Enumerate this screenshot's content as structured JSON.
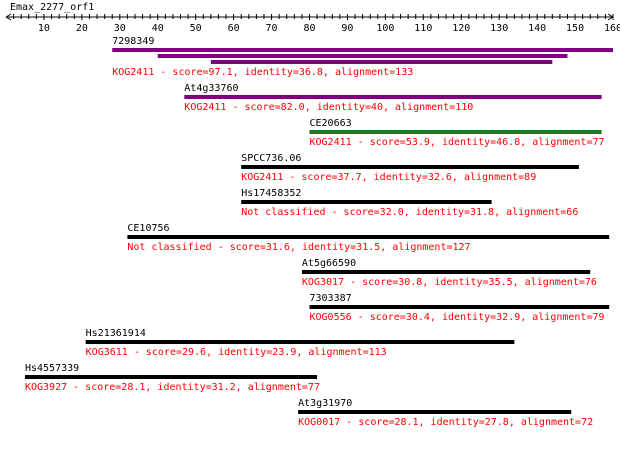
{
  "query": {
    "name": "Emax_2277_orf1",
    "ticks": [
      10,
      20,
      30,
      40,
      50,
      60,
      70,
      80,
      90,
      100,
      110,
      120,
      130,
      140,
      150,
      160
    ]
  },
  "colors": {
    "text": "#000000",
    "caption": "#ff0000",
    "purple": "#800080",
    "green": "#1f7a1f",
    "black": "#000000"
  },
  "hits": [
    {
      "id": "7298349",
      "caption": "KOG2411 - score=97.1, identity=36.8, alignment=133",
      "segments": [
        {
          "start": 28,
          "end": 160,
          "color": "purple"
        },
        {
          "start": 40,
          "end": 148,
          "color": "purple"
        },
        {
          "start": 54,
          "end": 144,
          "color": "purple"
        }
      ]
    },
    {
      "id": "At4g33760",
      "caption": "KOG2411 - score=82.0, identity=40, alignment=110",
      "segments": [
        {
          "start": 47,
          "end": 157,
          "color": "purple"
        }
      ]
    },
    {
      "id": "CE20663",
      "caption": "KOG2411 - score=53.9, identity=46.8, alignment=77",
      "segments": [
        {
          "start": 80,
          "end": 157,
          "color": "green"
        }
      ]
    },
    {
      "id": "SPCC736.06",
      "caption": "KOG2411 - score=37.7, identity=32.6, alignment=89",
      "segments": [
        {
          "start": 62,
          "end": 151,
          "color": "black"
        }
      ]
    },
    {
      "id": "Hs17458352",
      "caption": "Not classified - score=32.0, identity=31.8, alignment=66",
      "segments": [
        {
          "start": 62,
          "end": 128,
          "color": "black"
        }
      ]
    },
    {
      "id": "CE10756",
      "caption": "Not classified - score=31.6, identity=31.5, alignment=127",
      "segments": [
        {
          "start": 32,
          "end": 159,
          "color": "black"
        }
      ]
    },
    {
      "id": "At5g66590",
      "caption": "KOG3017 - score=30.8, identity=35.5, alignment=76",
      "segments": [
        {
          "start": 78,
          "end": 154,
          "color": "black"
        }
      ]
    },
    {
      "id": "7303387",
      "caption": "KOG0556 - score=30.4, identity=32.9, alignment=79",
      "segments": [
        {
          "start": 80,
          "end": 159,
          "color": "black"
        }
      ]
    },
    {
      "id": "Hs21361914",
      "caption": "KOG3611 - score=29.6, identity=23.9, alignment=113",
      "segments": [
        {
          "start": 21,
          "end": 134,
          "color": "black"
        }
      ]
    },
    {
      "id": "Hs4557339",
      "caption": "KOG3927 - score=28.1, identity=31.2, alignment=77",
      "segments": [
        {
          "start": 5,
          "end": 82,
          "color": "black"
        }
      ]
    },
    {
      "id": "At3g31970",
      "caption": "KOG0017 - score=28.1, identity=27.8, alignment=72",
      "segments": [
        {
          "start": 77,
          "end": 149,
          "color": "black"
        }
      ]
    }
  ]
}
